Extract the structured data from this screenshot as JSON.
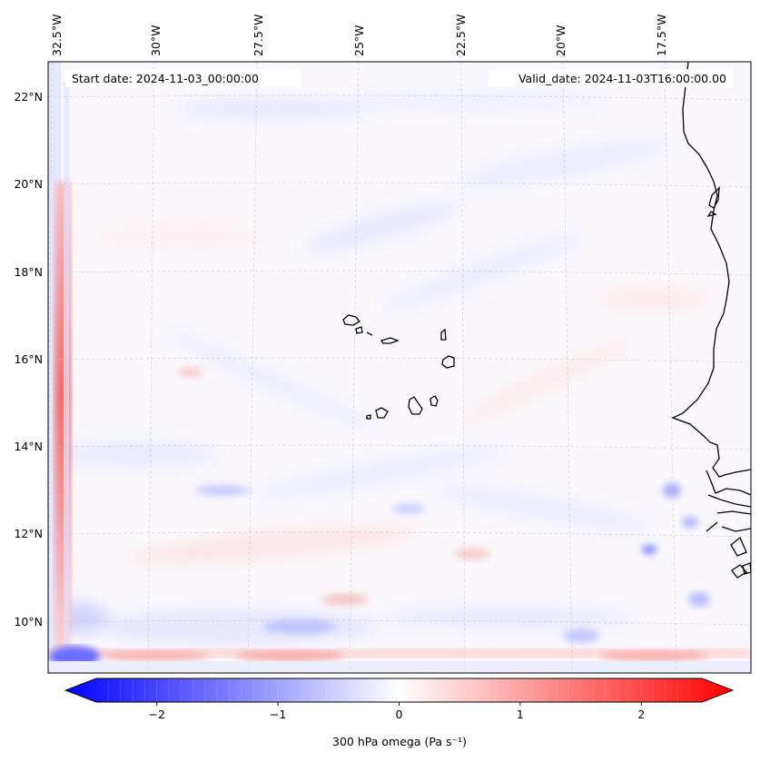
{
  "map": {
    "start_label": "Start date: 2024-11-03_00:00:00",
    "valid_label": "Valid_date: 2024-11-03T16:00:00.00",
    "lon_labels": [
      "32.5°W",
      "30°W",
      "27.5°W",
      "25°W",
      "22.5°W",
      "20°W",
      "17.5°W"
    ],
    "lat_labels": [
      "22°N",
      "20°N",
      "18°N",
      "16°N",
      "14°N",
      "12°N",
      "10°N"
    ],
    "field_colors": {
      "negative": "#0000ff",
      "neutral": "#ffffff",
      "positive": "#ff0000"
    }
  },
  "colorbar": {
    "label": "300 hPa omega (Pa s⁻¹)",
    "ticks": [
      "−2",
      "−1",
      "0",
      "1",
      "2"
    ],
    "tick_values": [
      -2,
      -1,
      0,
      1,
      2
    ],
    "range": [
      -2.5,
      2.5
    ],
    "extend": "both"
  }
}
